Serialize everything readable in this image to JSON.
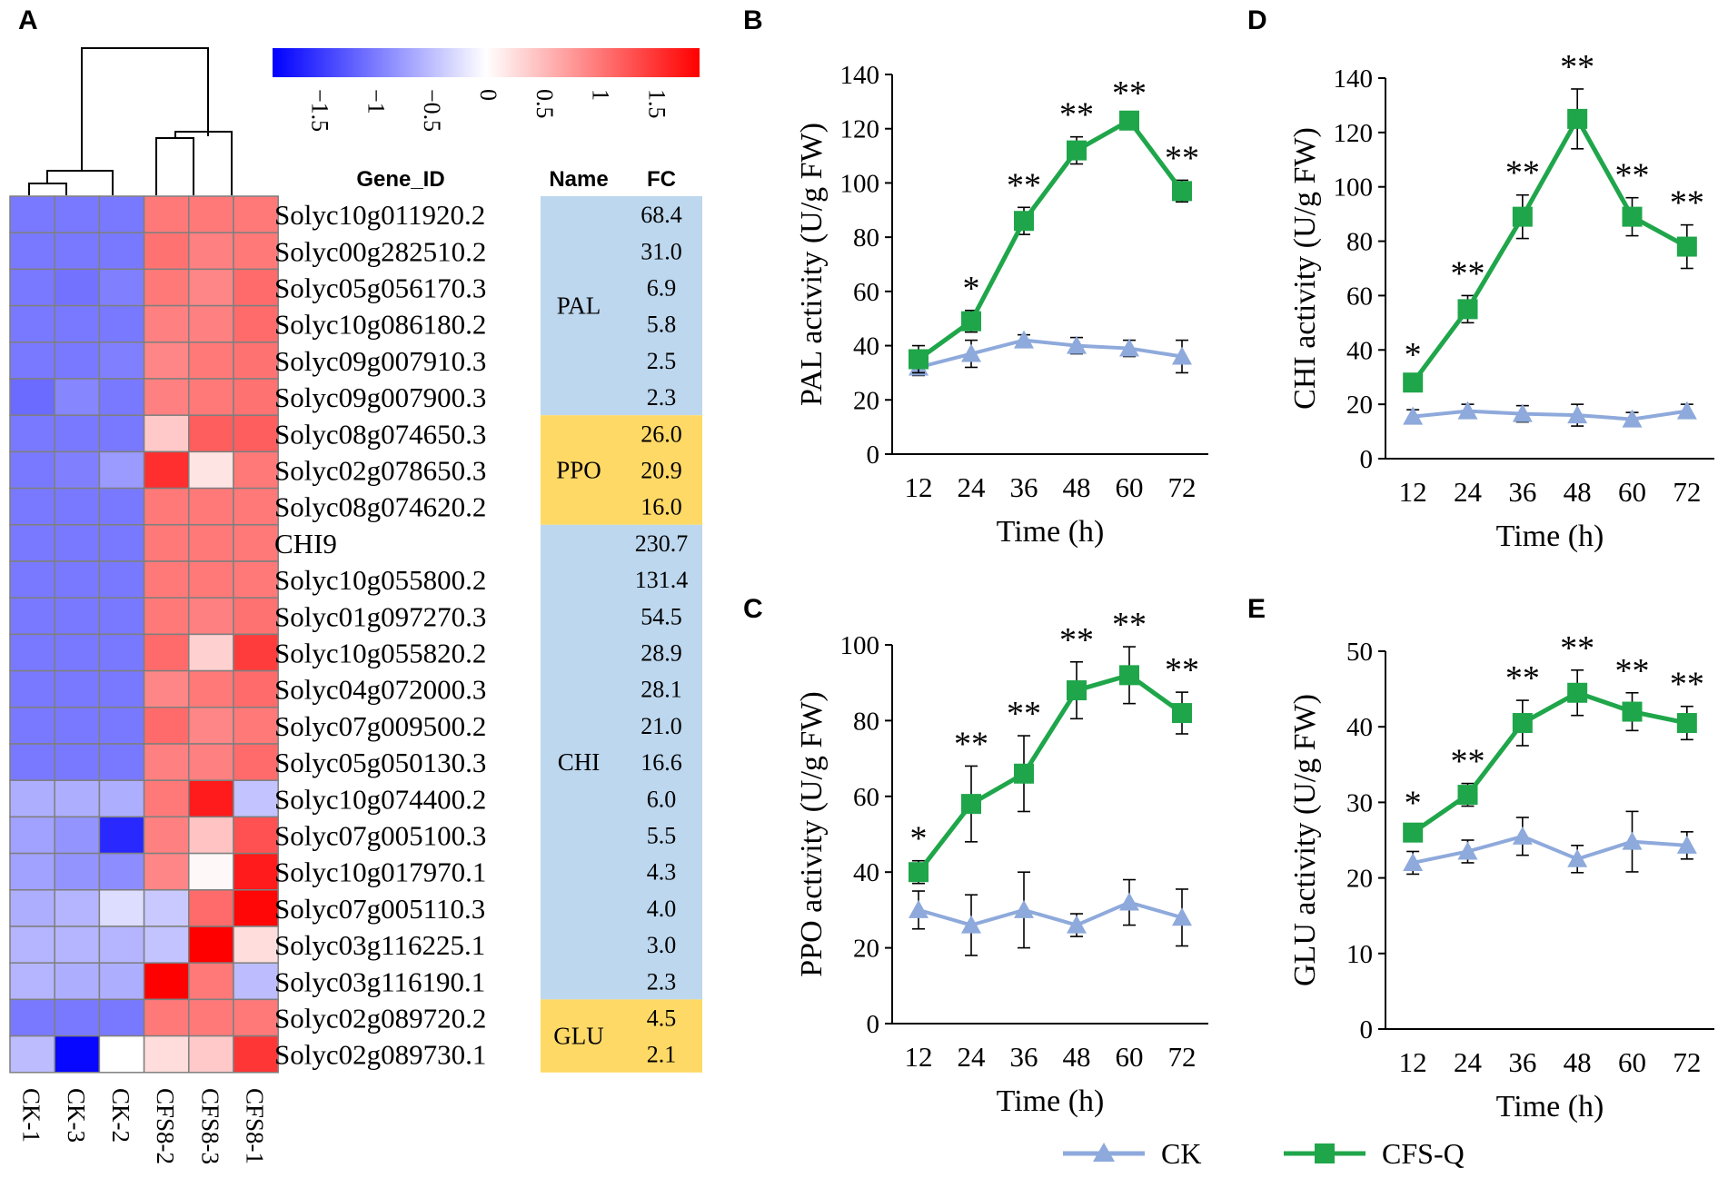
{
  "panel_labels": {
    "A": "A",
    "B": "B",
    "C": "C",
    "D": "D",
    "E": "E"
  },
  "colors": {
    "low": "#0000ff",
    "mid": "#ffffff",
    "high": "#ff0000",
    "grid": "#7f7f7f",
    "blue_group": "#bdd7ee",
    "gold_group": "#ffd966",
    "ck": "#8ea9db",
    "cfs": "#1fa64a"
  },
  "heatmap": {
    "scale_ticks": [
      "−1.5",
      "−1",
      "−0.5",
      "0",
      "0.5",
      "1",
      "1.5"
    ],
    "scale_values": [
      -1.5,
      -1,
      -0.5,
      0,
      0.5,
      1,
      1.5
    ],
    "scale_range": [
      -1.9,
      1.9
    ],
    "header": {
      "gene": "Gene_ID",
      "name": "Name",
      "fc": "FC"
    },
    "samples": [
      "CK-1",
      "CK-3",
      "CK-2",
      "CFS8-2",
      "CFS8-3",
      "CFS8-1"
    ],
    "rows": [
      {
        "gene": "Solyc10g011920.2",
        "fc": "68.4",
        "values": [
          -1.0,
          -1.0,
          -1.0,
          1.0,
          1.0,
          1.0
        ]
      },
      {
        "gene": "Solyc00g282510.2",
        "fc": "31.0",
        "values": [
          -1.0,
          -1.0,
          -1.0,
          1.05,
          0.95,
          1.0
        ]
      },
      {
        "gene": "Solyc05g056170.3",
        "fc": "6.9",
        "values": [
          -1.0,
          -1.05,
          -0.95,
          1.0,
          0.9,
          1.1
        ]
      },
      {
        "gene": "Solyc10g086180.2",
        "fc": "5.8",
        "values": [
          -1.0,
          -1.0,
          -1.0,
          0.95,
          0.95,
          1.1
        ]
      },
      {
        "gene": "Solyc09g007910.3",
        "fc": "2.5",
        "values": [
          -1.0,
          -1.0,
          -0.95,
          0.9,
          1.0,
          1.05
        ]
      },
      {
        "gene": "Solyc09g007900.3",
        "fc": "2.3",
        "values": [
          -1.1,
          -0.9,
          -1.0,
          0.95,
          1.0,
          1.05
        ]
      },
      {
        "gene": "Solyc08g074650.3",
        "fc": "26.0",
        "values": [
          -1.0,
          -1.0,
          -1.0,
          0.4,
          1.2,
          1.2
        ]
      },
      {
        "gene": "Solyc02g078650.3",
        "fc": "20.9",
        "values": [
          -1.0,
          -0.95,
          -0.75,
          1.55,
          0.2,
          1.0
        ]
      },
      {
        "gene": "Solyc08g074620.2",
        "fc": "16.0",
        "values": [
          -1.0,
          -1.0,
          -1.0,
          1.0,
          1.0,
          1.0
        ]
      },
      {
        "gene": "CHI9",
        "fc": "230.7",
        "values": [
          -1.0,
          -1.0,
          -1.0,
          1.0,
          1.0,
          1.0
        ]
      },
      {
        "gene": "Solyc10g055800.2",
        "fc": "131.4",
        "values": [
          -1.0,
          -1.0,
          -1.0,
          1.0,
          1.0,
          1.0
        ]
      },
      {
        "gene": "Solyc01g097270.3",
        "fc": "54.5",
        "values": [
          -1.0,
          -1.0,
          -1.0,
          1.0,
          0.95,
          1.05
        ]
      },
      {
        "gene": "Solyc10g055820.2",
        "fc": "28.9",
        "values": [
          -1.0,
          -1.0,
          -1.0,
          1.1,
          0.35,
          1.45
        ]
      },
      {
        "gene": "Solyc04g072000.3",
        "fc": "28.1",
        "values": [
          -1.0,
          -1.0,
          -1.0,
          0.9,
          1.0,
          1.1
        ]
      },
      {
        "gene": "Solyc07g009500.2",
        "fc": "21.0",
        "values": [
          -1.0,
          -1.0,
          -1.0,
          1.1,
          0.9,
          1.0
        ]
      },
      {
        "gene": "Solyc05g050130.3",
        "fc": "16.6",
        "values": [
          -1.0,
          -1.0,
          -1.0,
          0.95,
          0.95,
          1.1
        ]
      },
      {
        "gene": "Solyc10g074400.2",
        "fc": "6.0",
        "values": [
          -0.6,
          -0.6,
          -0.6,
          1.0,
          1.7,
          -0.45
        ]
      },
      {
        "gene": "Solyc07g005100.3",
        "fc": "5.5",
        "values": [
          -0.7,
          -0.8,
          -1.6,
          0.95,
          0.45,
          1.3
        ]
      },
      {
        "gene": "Solyc10g017970.1",
        "fc": "4.3",
        "values": [
          -0.7,
          -0.8,
          -0.85,
          0.9,
          0.05,
          1.7
        ]
      },
      {
        "gene": "Solyc07g005110.3",
        "fc": "4.0",
        "values": [
          -0.6,
          -0.55,
          -0.25,
          -0.4,
          1.1,
          1.85
        ]
      },
      {
        "gene": "Solyc03g116225.1",
        "fc": "3.0",
        "values": [
          -0.55,
          -0.55,
          -0.55,
          -0.45,
          1.9,
          0.25
        ]
      },
      {
        "gene": "Solyc03g116190.1",
        "fc": "2.3",
        "values": [
          -0.55,
          -0.6,
          -0.6,
          1.9,
          1.0,
          -0.5
        ]
      },
      {
        "gene": "Solyc02g089720.2",
        "fc": "4.5",
        "values": [
          -1.0,
          -1.0,
          -1.0,
          1.0,
          1.0,
          1.0
        ]
      },
      {
        "gene": "Solyc02g089730.1",
        "fc": "2.1",
        "values": [
          -0.5,
          -1.85,
          0.0,
          0.25,
          0.4,
          1.5
        ]
      }
    ],
    "groups": [
      {
        "name": "PAL",
        "start": 0,
        "count": 6,
        "color": "blue"
      },
      {
        "name": "PPO",
        "start": 6,
        "count": 3,
        "color": "gold"
      },
      {
        "name": "CHI",
        "start": 9,
        "count": 13,
        "color": "blue"
      },
      {
        "name": "GLU",
        "start": 22,
        "count": 2,
        "color": "gold"
      }
    ]
  },
  "chart_data": [
    {
      "panel": "B",
      "type": "line",
      "xlabel": "Time (h)",
      "ylabel": "PAL activity (U/g FW)",
      "ylim": [
        0,
        140
      ],
      "yticks": [
        0,
        20,
        40,
        60,
        80,
        100,
        120,
        140
      ],
      "categories": [
        "12",
        "24",
        "36",
        "48",
        "60",
        "72"
      ],
      "series": [
        {
          "name": "CK",
          "values": [
            32,
            37,
            42,
            40,
            39,
            36
          ],
          "errors": [
            3,
            5,
            2,
            3,
            3,
            6
          ]
        },
        {
          "name": "CFS-Q",
          "values": [
            35,
            49,
            86,
            112,
            123,
            97
          ],
          "errors": [
            5,
            4,
            5,
            5,
            2,
            4
          ]
        }
      ],
      "significance": [
        "",
        "*",
        "**",
        "**",
        "**",
        "**"
      ]
    },
    {
      "panel": "D",
      "type": "line",
      "xlabel": "Time (h)",
      "ylabel": "CHI activity (U/g FW)",
      "ylim": [
        0,
        140
      ],
      "yticks": [
        0,
        20,
        40,
        60,
        80,
        100,
        120,
        140
      ],
      "categories": [
        "12",
        "24",
        "36",
        "48",
        "60",
        "72"
      ],
      "series": [
        {
          "name": "CK",
          "values": [
            15.5,
            17.5,
            16.5,
            16,
            14.5,
            17.5
          ],
          "errors": [
            2.5,
            2.5,
            3,
            4,
            2.5,
            2.5
          ]
        },
        {
          "name": "CFS-Q",
          "values": [
            28,
            55,
            89,
            125,
            89,
            78
          ],
          "errors": [
            2,
            5,
            8,
            11,
            7,
            8
          ]
        }
      ],
      "significance": [
        "*",
        "**",
        "**",
        "**",
        "**",
        "**"
      ]
    },
    {
      "panel": "C",
      "type": "line",
      "xlabel": "Time (h)",
      "ylabel": "PPO activity (U/g FW)",
      "ylim": [
        0,
        100
      ],
      "yticks": [
        0,
        20,
        40,
        60,
        80,
        100
      ],
      "categories": [
        "12",
        "24",
        "36",
        "48",
        "60",
        "72"
      ],
      "series": [
        {
          "name": "CK",
          "values": [
            30,
            26,
            30,
            26,
            32,
            28
          ],
          "errors": [
            5,
            8,
            10,
            3,
            6,
            7.5
          ]
        },
        {
          "name": "CFS-Q",
          "values": [
            40,
            58,
            66,
            88,
            92,
            82
          ],
          "errors": [
            3,
            10,
            10,
            7.5,
            7.5,
            5.5
          ]
        }
      ],
      "significance": [
        "*",
        "**",
        "**",
        "**",
        "**",
        "**"
      ]
    },
    {
      "panel": "E",
      "type": "line",
      "xlabel": "Time (h)",
      "ylabel": "GLU activity (U/g FW)",
      "ylim": [
        0,
        50
      ],
      "yticks": [
        0,
        10,
        20,
        30,
        40,
        50
      ],
      "categories": [
        "12",
        "24",
        "36",
        "48",
        "60",
        "72"
      ],
      "series": [
        {
          "name": "CK",
          "values": [
            22,
            23.5,
            25.5,
            22.5,
            24.8,
            24.3
          ],
          "errors": [
            1.5,
            1.5,
            2.5,
            1.8,
            4,
            1.8
          ]
        },
        {
          "name": "CFS-Q",
          "values": [
            26,
            31,
            40.5,
            44.5,
            42,
            40.5
          ],
          "errors": [
            1.0,
            1.5,
            3,
            3,
            2.5,
            2.2
          ]
        }
      ],
      "significance": [
        "*",
        "**",
        "**",
        "**",
        "**",
        "**"
      ]
    }
  ],
  "legend": [
    {
      "label": "CK",
      "marker": "triangle"
    },
    {
      "label": "CFS-Q",
      "marker": "square"
    }
  ]
}
